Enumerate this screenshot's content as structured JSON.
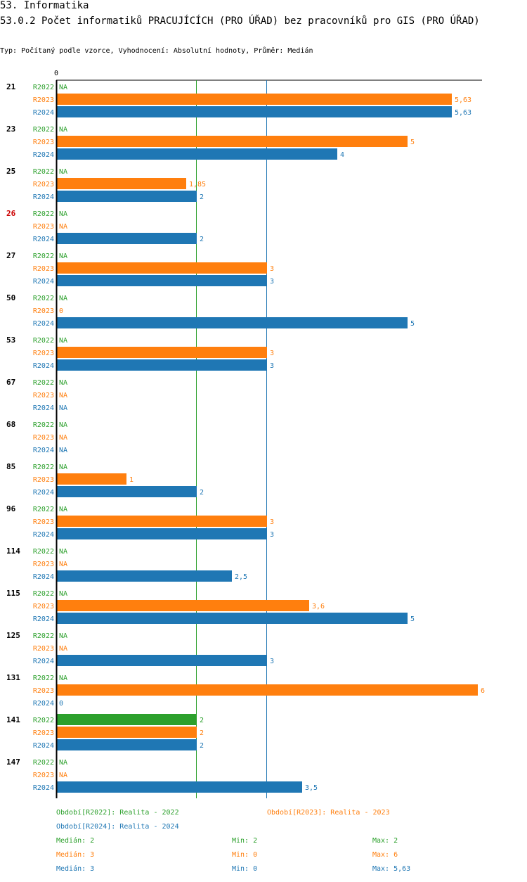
{
  "header": {
    "section_title": "53. Informatika",
    "chart_title": "53.0.2 Počet informatiků PRACUJÍCÍCH (PRO ÚŘAD) bez pracovníků pro GIS (PRO ÚŘAD)",
    "subtitle": "Typ: Počítaný podle vzorce, Vyhodnocení: Absolutní hodnoty, Průměr: Medián"
  },
  "colors": {
    "R2022": "#2ca02c",
    "R2023": "#ff7f0e",
    "R2024": "#1f77b4",
    "highlight": "#cc0000"
  },
  "chart_data": {
    "type": "bar",
    "orientation": "horizontal",
    "title": "53.0.2 Počet informatiků PRACUJÍCÍCH (PRO ÚŘAD) bez pracovníků pro GIS (PRO ÚŘAD)",
    "x_axis_label": "0",
    "xlim": [
      0,
      6
    ],
    "series_names": [
      "R2022",
      "R2023",
      "R2024"
    ],
    "na_label": "NA",
    "reference_lines": [
      {
        "series": "R2022",
        "value": 2
      },
      {
        "series": "R2024",
        "value": 3
      }
    ],
    "groups": [
      {
        "id": "21",
        "highlight": false,
        "values": [
          null,
          5.63,
          5.63
        ],
        "labels": [
          "NA",
          "5,63",
          "5,63"
        ]
      },
      {
        "id": "23",
        "highlight": false,
        "values": [
          null,
          5,
          4
        ],
        "labels": [
          "NA",
          "5",
          "4"
        ]
      },
      {
        "id": "25",
        "highlight": false,
        "values": [
          null,
          1.85,
          2
        ],
        "labels": [
          "NA",
          "1,85",
          "2"
        ]
      },
      {
        "id": "26",
        "highlight": true,
        "values": [
          null,
          null,
          2
        ],
        "labels": [
          "NA",
          "NA",
          "2"
        ]
      },
      {
        "id": "27",
        "highlight": false,
        "values": [
          null,
          3,
          3
        ],
        "labels": [
          "NA",
          "3",
          "3"
        ]
      },
      {
        "id": "50",
        "highlight": false,
        "values": [
          null,
          0,
          5
        ],
        "labels": [
          "NA",
          "0",
          "5"
        ]
      },
      {
        "id": "53",
        "highlight": false,
        "values": [
          null,
          3,
          3
        ],
        "labels": [
          "NA",
          "3",
          "3"
        ]
      },
      {
        "id": "67",
        "highlight": false,
        "values": [
          null,
          null,
          null
        ],
        "labels": [
          "NA",
          "NA",
          "NA"
        ]
      },
      {
        "id": "68",
        "highlight": false,
        "values": [
          null,
          null,
          null
        ],
        "labels": [
          "NA",
          "NA",
          "NA"
        ]
      },
      {
        "id": "85",
        "highlight": false,
        "values": [
          null,
          1,
          2
        ],
        "labels": [
          "NA",
          "1",
          "2"
        ]
      },
      {
        "id": "96",
        "highlight": false,
        "values": [
          null,
          3,
          3
        ],
        "labels": [
          "NA",
          "3",
          "3"
        ]
      },
      {
        "id": "114",
        "highlight": false,
        "values": [
          null,
          null,
          2.5
        ],
        "labels": [
          "NA",
          "NA",
          "2,5"
        ]
      },
      {
        "id": "115",
        "highlight": false,
        "values": [
          null,
          3.6,
          5
        ],
        "labels": [
          "NA",
          "3,6",
          "5"
        ]
      },
      {
        "id": "125",
        "highlight": false,
        "values": [
          null,
          null,
          3
        ],
        "labels": [
          "NA",
          "NA",
          "3"
        ]
      },
      {
        "id": "131",
        "highlight": false,
        "values": [
          null,
          6,
          0
        ],
        "labels": [
          "NA",
          "6",
          "0"
        ]
      },
      {
        "id": "141",
        "highlight": false,
        "values": [
          2,
          2,
          2
        ],
        "labels": [
          "2",
          "2",
          "2"
        ]
      },
      {
        "id": "147",
        "highlight": false,
        "values": [
          null,
          null,
          3.5
        ],
        "labels": [
          "NA",
          "NA",
          "3,5"
        ]
      }
    ]
  },
  "legend": {
    "periods": [
      {
        "series": "R2022",
        "text": "Období[R2022]: Realita - 2022"
      },
      {
        "series": "R2023",
        "text": "Období[R2023]: Realita - 2023"
      },
      {
        "series": "R2024",
        "text": "Období[R2024]: Realita - 2024"
      }
    ],
    "stats": [
      {
        "series": "R2022",
        "median": "Medián: 2",
        "min": "Min: 2",
        "max": "Max: 2"
      },
      {
        "series": "R2023",
        "median": "Medián: 3",
        "min": "Min: 0",
        "max": "Max: 6"
      },
      {
        "series": "R2024",
        "median": "Medián: 3",
        "min": "Min: 0",
        "max": "Max: 5,63"
      }
    ]
  }
}
